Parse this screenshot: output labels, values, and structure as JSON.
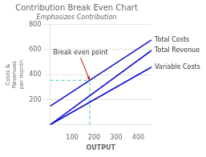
{
  "chart_data": {
    "type": "line",
    "title": "Contribution Break Even Chart",
    "subtitle": "Emphasizes Contribution",
    "xlabel": "OUTPUT",
    "ylabel": "Costs &\nRevenues\nper month",
    "xlim": [
      0,
      460
    ],
    "ylim": [
      0,
      800
    ],
    "xticks": [
      100,
      200,
      300,
      400
    ],
    "yticks": [
      200,
      400,
      600,
      800
    ],
    "grid": "y",
    "series": [
      {
        "name": "Total Revenue",
        "color": "#1010cc",
        "x": [
          0,
          460
        ],
        "values": [
          0,
          593.1578947368421
        ]
      },
      {
        "name": "Total Costs",
        "color": "#1010cc",
        "x": [
          0,
          460
        ],
        "values": [
          148,
          677
        ]
      },
      {
        "name": "Variable Costs",
        "color": "#1010cc",
        "x": [
          0,
          460
        ],
        "values": [
          0,
          460
        ]
      },
      {
        "color": "#30c8b0",
        "line_style": "dashed",
        "x": [
          0,
          180
        ],
        "values": [
          355,
          355
        ]
      },
      {
        "color": "#30c8b0",
        "line_style": "dashed",
        "x": [
          180,
          180
        ],
        "values": [
          0,
          355
        ]
      }
    ],
    "annotations": [
      {
        "text": "Break even point",
        "x": 180,
        "y": 355,
        "color": "#bb1100"
      }
    ]
  }
}
